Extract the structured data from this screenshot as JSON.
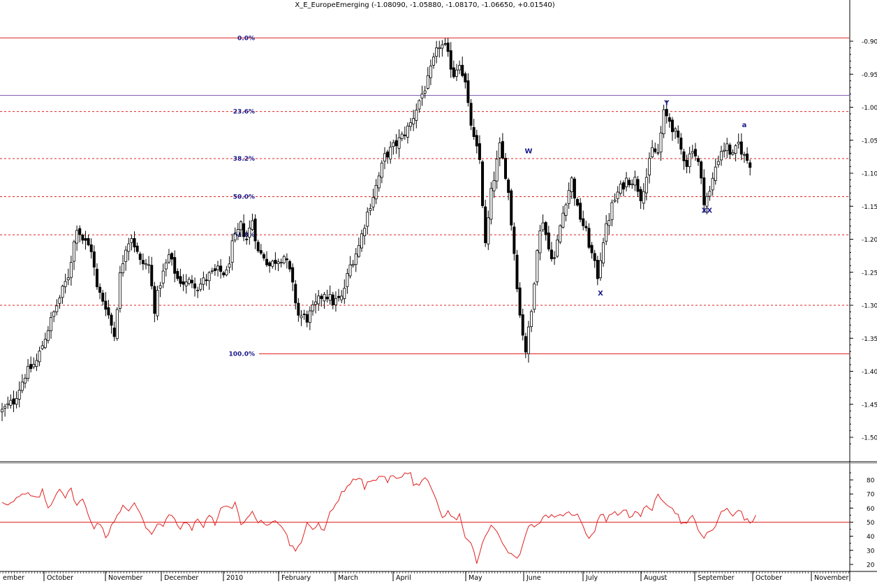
{
  "chart_data": [
    {
      "type": "candlestick",
      "title": "X_E_EuropeEmerging (-1.08090, -1.05880, -1.08170, -1.06650, +0.01540)",
      "ylim": [
        -1.55,
        -0.88
      ],
      "y_ticks": [
        "-0.90",
        "-0.95",
        "-1.00",
        "-1.05",
        "-1.10",
        "-1.15",
        "-1.20",
        "-1.25",
        "-1.30",
        "-1.35",
        "-1.40",
        "-1.45",
        "-1.50"
      ],
      "y_tick_values": [
        -0.9,
        -0.95,
        -1.0,
        -1.05,
        -1.1,
        -1.15,
        -1.2,
        -1.25,
        -1.3,
        -1.35,
        -1.4,
        -1.45,
        -1.5
      ],
      "x_months": [
        "ember",
        "October",
        "November",
        "December",
        "2010",
        "February",
        "March",
        "April",
        "May",
        "June",
        "July",
        "August",
        "September",
        "October",
        "November"
      ],
      "x_month_index": [
        0,
        15,
        37,
        58,
        80,
        100,
        120,
        140,
        161,
        182,
        203,
        224,
        246,
        267,
        288
      ],
      "bars_total": 300,
      "anchors": [
        [
          0,
          -1.46
        ],
        [
          4,
          -1.445
        ],
        [
          8,
          -1.405
        ],
        [
          12,
          -1.385
        ],
        [
          16,
          -1.335
        ],
        [
          19,
          -1.3
        ],
        [
          23,
          -1.255
        ],
        [
          26,
          -1.18
        ],
        [
          28,
          -1.2
        ],
        [
          31,
          -1.215
        ],
        [
          33,
          -1.275
        ],
        [
          36,
          -1.3
        ],
        [
          39,
          -1.345
        ],
        [
          41,
          -1.255
        ],
        [
          43,
          -1.21
        ],
        [
          45,
          -1.195
        ],
        [
          48,
          -1.235
        ],
        [
          51,
          -1.24
        ],
        [
          53,
          -1.305
        ],
        [
          55,
          -1.265
        ],
        [
          58,
          -1.225
        ],
        [
          61,
          -1.26
        ],
        [
          64,
          -1.268
        ],
        [
          66,
          -1.262
        ],
        [
          68,
          -1.272
        ],
        [
          72,
          -1.255
        ],
        [
          75,
          -1.248
        ],
        [
          78,
          -1.252
        ],
        [
          80,
          -1.21
        ],
        [
          83,
          -1.18
        ],
        [
          85,
          -1.2
        ],
        [
          87,
          -1.17
        ],
        [
          89,
          -1.22
        ],
        [
          91,
          -1.225
        ],
        [
          93,
          -1.24
        ],
        [
          95,
          -1.232
        ],
        [
          98,
          -1.225
        ],
        [
          100,
          -1.25
        ],
        [
          103,
          -1.315
        ],
        [
          106,
          -1.32
        ],
        [
          109,
          -1.3
        ],
        [
          112,
          -1.28
        ],
        [
          115,
          -1.295
        ],
        [
          118,
          -1.29
        ],
        [
          121,
          -1.24
        ],
        [
          124,
          -1.21
        ],
        [
          127,
          -1.16
        ],
        [
          130,
          -1.12
        ],
        [
          133,
          -1.075
        ],
        [
          136,
          -1.06
        ],
        [
          139,
          -1.045
        ],
        [
          142,
          -1.025
        ],
        [
          145,
          -0.99
        ],
        [
          148,
          -0.96
        ],
        [
          150,
          -0.93
        ],
        [
          152,
          -0.905
        ],
        [
          154,
          -0.91
        ],
        [
          157,
          -0.95
        ],
        [
          159,
          -0.93
        ],
        [
          161,
          -0.965
        ],
        [
          162,
          -1.0
        ],
        [
          164,
          -1.05
        ],
        [
          166,
          -1.08
        ],
        [
          168,
          -1.21
        ],
        [
          170,
          -1.13
        ],
        [
          173,
          -1.06
        ],
        [
          175,
          -1.1
        ],
        [
          176,
          -1.13
        ],
        [
          178,
          -1.22
        ],
        [
          180,
          -1.315
        ],
        [
          182,
          -1.368
        ],
        [
          184,
          -1.31
        ],
        [
          186,
          -1.21
        ],
        [
          188,
          -1.17
        ],
        [
          190,
          -1.215
        ],
        [
          192,
          -1.23
        ],
        [
          194,
          -1.18
        ],
        [
          196,
          -1.14
        ],
        [
          198,
          -1.11
        ],
        [
          200,
          -1.155
        ],
        [
          203,
          -1.19
        ],
        [
          206,
          -1.24
        ],
        [
          207,
          -1.255
        ],
        [
          209,
          -1.2
        ],
        [
          212,
          -1.15
        ],
        [
          214,
          -1.13
        ],
        [
          217,
          -1.11
        ],
        [
          220,
          -1.11
        ],
        [
          222,
          -1.135
        ],
        [
          224,
          -1.105
        ],
        [
          226,
          -1.065
        ],
        [
          228,
          -1.07
        ],
        [
          230,
          -1.01
        ],
        [
          232,
          -1.02
        ],
        [
          234,
          -1.04
        ],
        [
          236,
          -1.065
        ],
        [
          238,
          -1.085
        ],
        [
          240,
          -1.06
        ],
        [
          242,
          -1.085
        ],
        [
          244,
          -1.14
        ],
        [
          246,
          -1.13
        ],
        [
          248,
          -1.09
        ],
        [
          250,
          -1.065
        ],
        [
          252,
          -1.06
        ],
        [
          254,
          -1.075
        ],
        [
          256,
          -1.055
        ],
        [
          258,
          -1.075
        ],
        [
          260,
          -1.085
        ]
      ],
      "fib_levels": [
        {
          "label": "0.0%",
          "value": -0.895
        },
        {
          "label": "23.6%",
          "value": -1.0065
        },
        {
          "label": "38.2%",
          "value": -1.0778
        },
        {
          "label": "50.0%",
          "value": -1.1355
        },
        {
          "label": "61.8%",
          "value": -1.1932
        },
        {
          "label": "100.0%",
          "value": -1.3735
        }
      ],
      "extra_lines": [
        {
          "value": -0.982,
          "color": "#8060b0",
          "style": "solid"
        },
        {
          "value": -1.3,
          "color": "#e02020",
          "style": "dashed"
        }
      ],
      "annotations": [
        {
          "text": "W",
          "x": 183,
          "y": -1.07
        },
        {
          "text": "X",
          "x": 208,
          "y": -1.285
        },
        {
          "text": "Y",
          "x": 231,
          "y": -0.997
        },
        {
          "text": "XX",
          "x": 245,
          "y": -1.16
        },
        {
          "text": "a",
          "x": 258,
          "y": -1.03
        }
      ]
    },
    {
      "type": "line",
      "ylim": [
        15,
        90
      ],
      "y_ticks": [
        "80",
        "70",
        "60",
        "50",
        "40",
        "30",
        "20"
      ],
      "y_tick_values": [
        80,
        70,
        60,
        50,
        40,
        30,
        20
      ],
      "reference_line": 50,
      "anchors": [
        [
          0,
          65
        ],
        [
          3,
          63
        ],
        [
          6,
          68
        ],
        [
          9,
          70
        ],
        [
          12,
          66
        ],
        [
          14,
          72
        ],
        [
          16,
          60
        ],
        [
          18,
          67
        ],
        [
          20,
          75
        ],
        [
          22,
          68
        ],
        [
          24,
          73
        ],
        [
          26,
          62
        ],
        [
          28,
          66
        ],
        [
          30,
          55
        ],
        [
          32,
          47
        ],
        [
          34,
          50
        ],
        [
          36,
          38
        ],
        [
          38,
          48
        ],
        [
          40,
          55
        ],
        [
          42,
          62
        ],
        [
          44,
          57
        ],
        [
          46,
          63
        ],
        [
          48,
          57
        ],
        [
          50,
          47
        ],
        [
          52,
          42
        ],
        [
          54,
          50
        ],
        [
          56,
          47
        ],
        [
          58,
          55
        ],
        [
          60,
          52
        ],
        [
          62,
          45
        ],
        [
          64,
          50
        ],
        [
          66,
          46
        ],
        [
          68,
          51
        ],
        [
          70,
          48
        ],
        [
          72,
          55
        ],
        [
          74,
          49
        ],
        [
          76,
          60
        ],
        [
          78,
          62
        ],
        [
          80,
          58
        ],
        [
          81,
          66
        ],
        [
          83,
          48
        ],
        [
          85,
          52
        ],
        [
          87,
          58
        ],
        [
          88,
          52
        ],
        [
          90,
          50
        ],
        [
          92,
          46
        ],
        [
          94,
          52
        ],
        [
          96,
          50
        ],
        [
          98,
          46
        ],
        [
          100,
          35
        ],
        [
          102,
          30
        ],
        [
          104,
          35
        ],
        [
          106,
          50
        ],
        [
          108,
          45
        ],
        [
          110,
          48
        ],
        [
          112,
          43
        ],
        [
          114,
          56
        ],
        [
          116,
          63
        ],
        [
          118,
          71
        ],
        [
          120,
          76
        ],
        [
          122,
          79
        ],
        [
          124,
          82
        ],
        [
          126,
          75
        ],
        [
          128,
          79
        ],
        [
          130,
          80
        ],
        [
          132,
          82
        ],
        [
          134,
          80
        ],
        [
          136,
          82
        ],
        [
          138,
          83
        ],
        [
          140,
          84
        ],
        [
          142,
          85
        ],
        [
          143,
          75
        ],
        [
          145,
          78
        ],
        [
          147,
          82
        ],
        [
          149,
          73
        ],
        [
          151,
          64
        ],
        [
          153,
          52
        ],
        [
          155,
          57
        ],
        [
          157,
          52
        ],
        [
          159,
          55
        ],
        [
          161,
          40
        ],
        [
          163,
          34
        ],
        [
          165,
          22
        ],
        [
          167,
          34
        ],
        [
          168,
          40
        ],
        [
          170,
          47
        ],
        [
          172,
          43
        ],
        [
          174,
          36
        ],
        [
          176,
          30
        ],
        [
          178,
          25
        ],
        [
          180,
          27
        ],
        [
          182,
          43
        ],
        [
          184,
          48
        ],
        [
          186,
          49
        ],
        [
          188,
          52
        ],
        [
          190,
          55
        ],
        [
          192,
          52
        ],
        [
          194,
          54
        ],
        [
          196,
          58
        ],
        [
          198,
          54
        ],
        [
          200,
          57
        ],
        [
          202,
          48
        ],
        [
          204,
          38
        ],
        [
          206,
          45
        ],
        [
          208,
          56
        ],
        [
          210,
          52
        ],
        [
          212,
          57
        ],
        [
          214,
          55
        ],
        [
          216,
          60
        ],
        [
          218,
          55
        ],
        [
          220,
          56
        ],
        [
          222,
          54
        ],
        [
          224,
          62
        ],
        [
          226,
          60
        ],
        [
          228,
          68
        ],
        [
          230,
          66
        ],
        [
          232,
          62
        ],
        [
          234,
          58
        ],
        [
          236,
          50
        ],
        [
          238,
          48
        ],
        [
          240,
          54
        ],
        [
          242,
          45
        ],
        [
          244,
          38
        ],
        [
          246,
          44
        ],
        [
          248,
          47
        ],
        [
          250,
          56
        ],
        [
          252,
          60
        ],
        [
          254,
          55
        ],
        [
          256,
          60
        ],
        [
          258,
          52
        ],
        [
          260,
          50
        ],
        [
          262,
          53
        ]
      ]
    }
  ]
}
